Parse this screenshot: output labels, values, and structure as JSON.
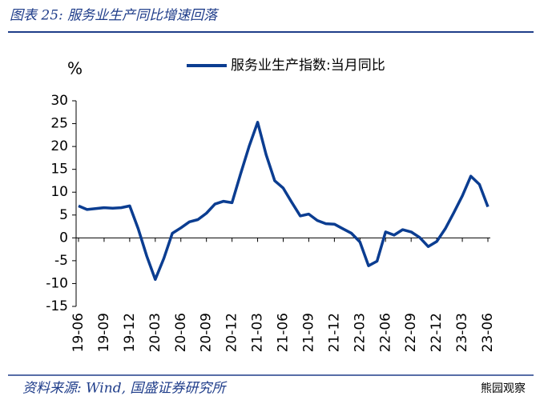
{
  "chart_data": {
    "type": "line",
    "title": "图表 25: 服务业生产同比增速回落",
    "ylabel": "%",
    "source": "资料来源: Wind, 国盛证券研究所",
    "watermark": "熊园观察",
    "categories": [
      "19-06",
      null,
      null,
      "19-09",
      null,
      null,
      "19-12",
      null,
      null,
      "20-03",
      null,
      null,
      "20-06",
      null,
      null,
      "20-09",
      null,
      null,
      "20-12",
      null,
      null,
      "21-03",
      null,
      null,
      "21-06",
      null,
      null,
      "21-09",
      null,
      null,
      "21-12",
      null,
      null,
      "22-03",
      null,
      null,
      "22-06",
      null,
      null,
      "22-09",
      null,
      null,
      "22-12",
      null,
      null,
      "23-03",
      null,
      null,
      "23-06"
    ],
    "series": [
      {
        "name": "服务业生产指数:当月同比",
        "color": "#0b3d91",
        "values": [
          7.0,
          6.2,
          6.4,
          6.6,
          6.5,
          6.6,
          7.0,
          2.0,
          -4.0,
          -9.1,
          -4.5,
          1.0,
          2.2,
          3.5,
          4.0,
          5.4,
          7.4,
          8.0,
          7.7,
          14.0,
          20.0,
          25.3,
          18.2,
          12.5,
          10.9,
          7.8,
          4.8,
          5.2,
          3.8,
          3.1,
          3.0,
          2.0,
          1.0,
          -0.9,
          -6.1,
          -5.1,
          1.3,
          0.6,
          1.8,
          1.3,
          0.1,
          -1.9,
          -0.8,
          2.0,
          5.5,
          9.2,
          13.5,
          11.7,
          6.8
        ]
      }
    ],
    "ylim": [
      -15,
      30
    ],
    "yticks": [
      -15,
      -10,
      -5,
      0,
      5,
      10,
      15,
      20,
      25,
      30
    ],
    "legend": "top"
  }
}
